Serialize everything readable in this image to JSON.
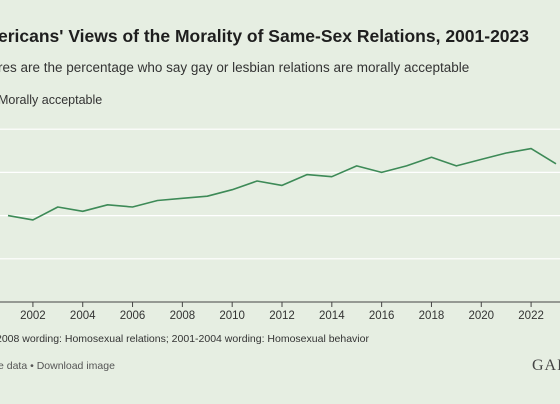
{
  "header": {
    "title": "ericans' Views of the Morality of Same-Sex Relations, 2001-2023",
    "subtitle": "res are the percentage who say gay or lesbian relations are morally acceptable"
  },
  "footer": {
    "note": "2008 wording: Homosexual relations; 2001-2004 wording: Homosexual behavior",
    "links": "e data • Download image",
    "brand": "GAL"
  },
  "colors": {
    "background": "#e6eee2",
    "line": "#3d8a57",
    "grid": "#ffffff",
    "axis": "#444444"
  },
  "chart_data": {
    "type": "line",
    "title": "ericans' Views of the Morality of Same-Sex Relations, 2001-2023",
    "subtitle": "res are the percentage who say gay or lesbian relations are morally acceptable",
    "xlabel": "",
    "ylabel": "",
    "x_ticks": [
      2002,
      2004,
      2006,
      2008,
      2010,
      2012,
      2014,
      2016,
      2018,
      2020,
      2022
    ],
    "xlim": [
      2001,
      2023
    ],
    "ylim": [
      0,
      100
    ],
    "y_gridlines": [
      20,
      40,
      60,
      80
    ],
    "grid": true,
    "legend": "top-left",
    "series": [
      {
        "name": "Morally acceptable",
        "color": "#3d8a57",
        "x": [
          2001,
          2002,
          2003,
          2004,
          2005,
          2006,
          2007,
          2008,
          2009,
          2010,
          2011,
          2012,
          2013,
          2014,
          2015,
          2016,
          2017,
          2018,
          2019,
          2020,
          2021,
          2022,
          2023
        ],
        "y": [
          40,
          38,
          44,
          42,
          45,
          44,
          47,
          48,
          49,
          52,
          56,
          54,
          59,
          58,
          63,
          60,
          63,
          67,
          63,
          66,
          69,
          71,
          64
        ]
      }
    ]
  }
}
